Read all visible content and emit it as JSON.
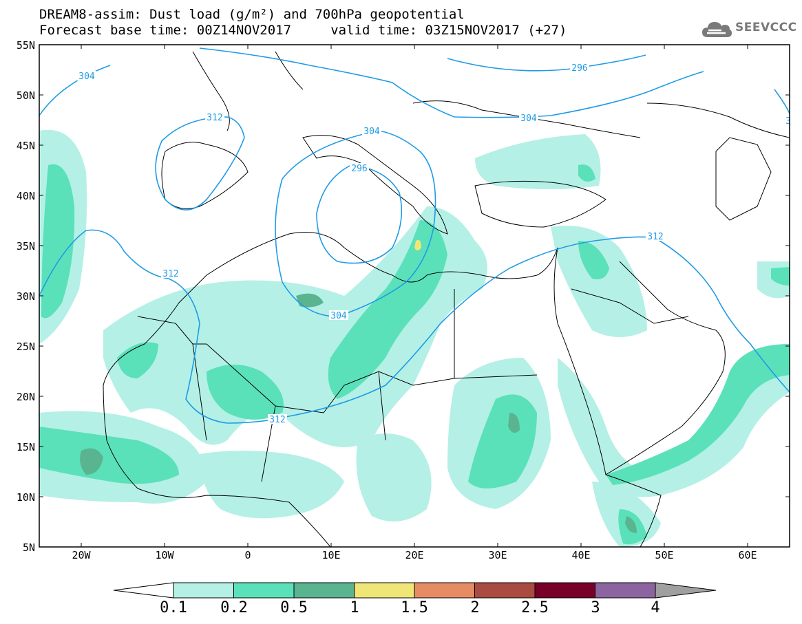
{
  "header": {
    "title_line1": "DREAM8-assim: Dust load (g/m²) and 700hPa geopotential",
    "title_line2": "Forecast base time: 00Z14NOV2017     valid time: 03Z15NOV2017 (+27)",
    "logo_text": "SEEVCCC",
    "logo_icon": "cloud-icon"
  },
  "map": {
    "lat_labels": [
      "55N",
      "50N",
      "45N",
      "40N",
      "35N",
      "30N",
      "25N",
      "20N",
      "15N",
      "10N",
      "5N"
    ],
    "lon_labels": [
      "20W",
      "10W",
      "0",
      "10E",
      "20E",
      "30E",
      "40E",
      "50E",
      "60E"
    ],
    "contour_labels": [
      "304",
      "312",
      "296",
      "304",
      "304",
      "296",
      "312",
      "312",
      "304",
      "312",
      "3"
    ],
    "contour_color": "#1e9be6"
  },
  "colorbar": {
    "levels": [
      "0.1",
      "0.2",
      "0.5",
      "1",
      "1.5",
      "2",
      "2.5",
      "3",
      "4"
    ],
    "colors": [
      "#ffffff",
      "#b4f0e6",
      "#5ae1b9",
      "#5ab490",
      "#f0e678",
      "#e68c64",
      "#aa4b41",
      "#780028",
      "#8c64a0",
      "#a0a0a0"
    ]
  }
}
